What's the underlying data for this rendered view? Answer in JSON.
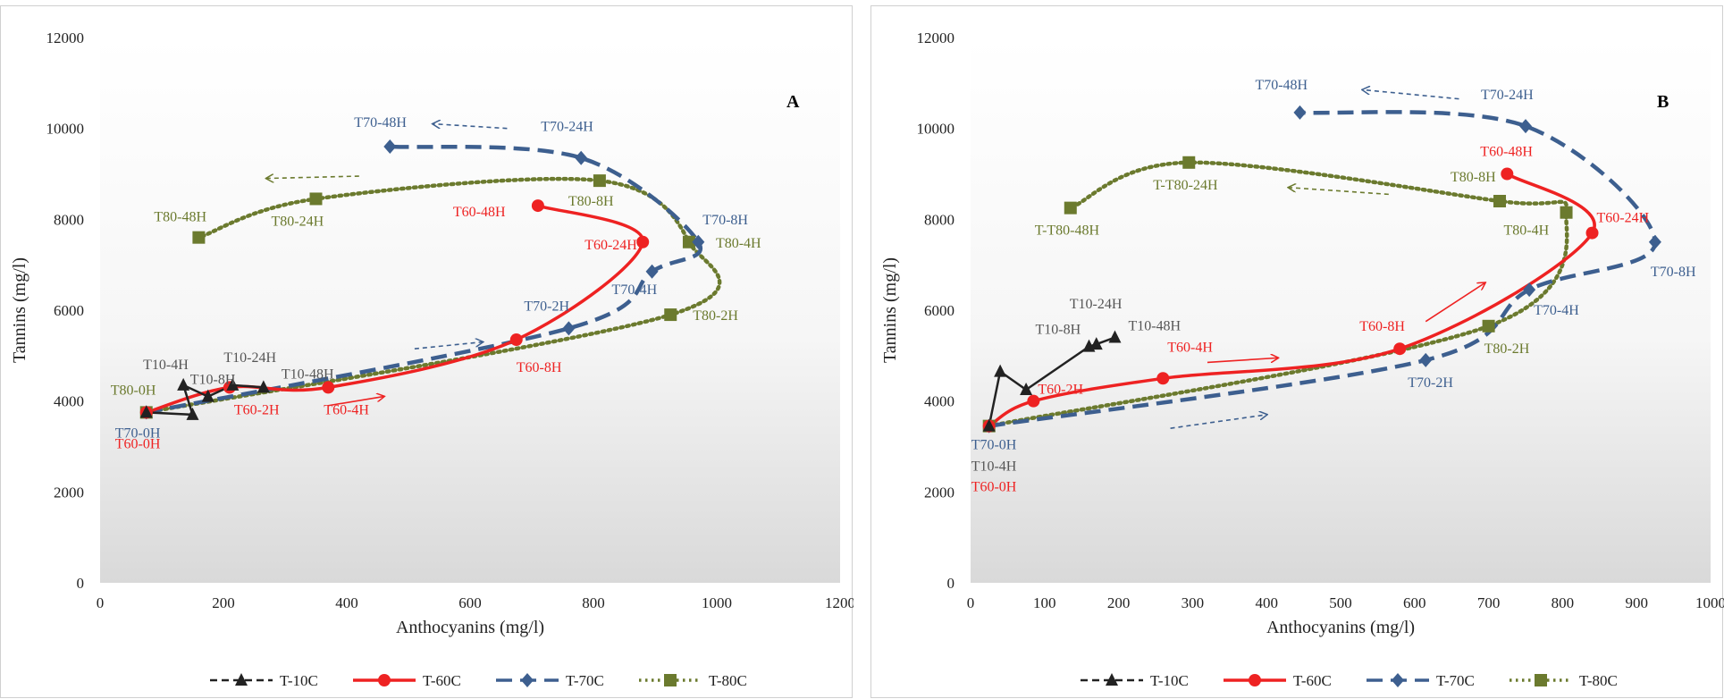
{
  "chart_data": [
    {
      "type": "line",
      "panel_label": "A",
      "xlabel": "Anthocyanins  (mg/l)",
      "ylabel": "Tannins  (mg/l)",
      "xlim": [
        0,
        1200
      ],
      "ylim": [
        0,
        12000
      ],
      "xticks": [
        0,
        200,
        400,
        600,
        800,
        1000,
        1200
      ],
      "yticks": [
        0,
        2000,
        4000,
        6000,
        8000,
        10000,
        12000
      ],
      "grid": false,
      "legend_position": "bottom",
      "series": [
        {
          "name": "T-10C",
          "color": "#222222",
          "marker": "triangle",
          "points": [
            {
              "x": 75,
              "y": 3750,
              "label": ""
            },
            {
              "x": 150,
              "y": 3700,
              "label": ""
            },
            {
              "x": 135,
              "y": 4350,
              "label": "T10-4H"
            },
            {
              "x": 175,
              "y": 4100,
              "label": "T10-8H"
            },
            {
              "x": 215,
              "y": 4350,
              "label": "T10-24H"
            },
            {
              "x": 265,
              "y": 4300,
              "label": "T10-48H"
            }
          ]
        },
        {
          "name": "T-60C",
          "color": "#ee2222",
          "marker": "circle",
          "points": [
            {
              "x": 75,
              "y": 3750,
              "label": "T60-0H"
            },
            {
              "x": 210,
              "y": 4300,
              "label": "T60-2H"
            },
            {
              "x": 370,
              "y": 4300,
              "label": "T60-4H"
            },
            {
              "x": 675,
              "y": 5350,
              "label": "T60-8H"
            },
            {
              "x": 880,
              "y": 7500,
              "label": "T60-24H"
            },
            {
              "x": 710,
              "y": 8300,
              "label": "T60-48H"
            }
          ]
        },
        {
          "name": "T-70C",
          "color": "#3d5f8f",
          "marker": "diamond",
          "points": [
            {
              "x": 75,
              "y": 3750,
              "label": "T70-0H"
            },
            {
              "x": 760,
              "y": 5600,
              "label": "T70-2H"
            },
            {
              "x": 895,
              "y": 6850,
              "label": "T70-4H"
            },
            {
              "x": 970,
              "y": 7500,
              "label": "T70-8H"
            },
            {
              "x": 780,
              "y": 9350,
              "label": "T70-24H"
            },
            {
              "x": 470,
              "y": 9600,
              "label": "T70-48H"
            }
          ]
        },
        {
          "name": "T-80C",
          "color": "#6b7a2e",
          "marker": "square",
          "points": [
            {
              "x": 75,
              "y": 3750,
              "label": "T80-0H"
            },
            {
              "x": 925,
              "y": 5900,
              "label": "T80-2H"
            },
            {
              "x": 955,
              "y": 7500,
              "label": "T80-4H"
            },
            {
              "x": 810,
              "y": 8850,
              "label": "T80-8H"
            },
            {
              "x": 350,
              "y": 8450,
              "label": "T80-24H"
            },
            {
              "x": 160,
              "y": 7600,
              "label": "T80-48H"
            }
          ]
        }
      ]
    },
    {
      "type": "line",
      "panel_label": "B",
      "xlabel": "Anthocyanins  (mg/l)",
      "ylabel": "Tannins  (mg/l)",
      "xlim": [
        0,
        1000
      ],
      "ylim": [
        0,
        12000
      ],
      "xticks": [
        0,
        100,
        200,
        300,
        400,
        500,
        600,
        700,
        800,
        900,
        1000
      ],
      "yticks": [
        0,
        2000,
        4000,
        6000,
        8000,
        10000,
        12000
      ],
      "grid": false,
      "legend_position": "bottom",
      "series": [
        {
          "name": "T-10C",
          "color": "#222222",
          "marker": "triangle",
          "points": [
            {
              "x": 25,
              "y": 3450,
              "label": "T10-4H"
            },
            {
              "x": 40,
              "y": 4650,
              "label": ""
            },
            {
              "x": 75,
              "y": 4250,
              "label": ""
            },
            {
              "x": 160,
              "y": 5200,
              "label": "T10-8H"
            },
            {
              "x": 170,
              "y": 5250,
              "label": "T10-24H"
            },
            {
              "x": 195,
              "y": 5400,
              "label": "T10-48H"
            }
          ]
        },
        {
          "name": "T-60C",
          "color": "#ee2222",
          "marker": "circle",
          "points": [
            {
              "x": 25,
              "y": 3450,
              "label": "T60-0H"
            },
            {
              "x": 85,
              "y": 4000,
              "label": "T60-2H"
            },
            {
              "x": 260,
              "y": 4500,
              "label": "T60-4H"
            },
            {
              "x": 580,
              "y": 5150,
              "label": "T60-8H"
            },
            {
              "x": 840,
              "y": 7700,
              "label": "T60-24H"
            },
            {
              "x": 725,
              "y": 9000,
              "label": "T60-48H"
            }
          ]
        },
        {
          "name": "T-70C",
          "color": "#3d5f8f",
          "marker": "diamond",
          "points": [
            {
              "x": 25,
              "y": 3450,
              "label": "T70-0H"
            },
            {
              "x": 615,
              "y": 4900,
              "label": "T70-2H"
            },
            {
              "x": 755,
              "y": 6450,
              "label": "T70-4H"
            },
            {
              "x": 925,
              "y": 7500,
              "label": "T70-8H"
            },
            {
              "x": 750,
              "y": 10050,
              "label": "T70-24H"
            },
            {
              "x": 445,
              "y": 10350,
              "label": "T70-48H"
            }
          ]
        },
        {
          "name": "T-80C",
          "color": "#6b7a2e",
          "marker": "square",
          "points": [
            {
              "x": 25,
              "y": 3450,
              "label": ""
            },
            {
              "x": 700,
              "y": 5650,
              "label": "T80-2H"
            },
            {
              "x": 805,
              "y": 8150,
              "label": "T80-4H"
            },
            {
              "x": 715,
              "y": 8400,
              "label": "T80-8H"
            },
            {
              "x": 295,
              "y": 9250,
              "label": "T-T80-24H"
            },
            {
              "x": 135,
              "y": 8250,
              "label": "T-T80-48H"
            }
          ]
        }
      ]
    }
  ]
}
